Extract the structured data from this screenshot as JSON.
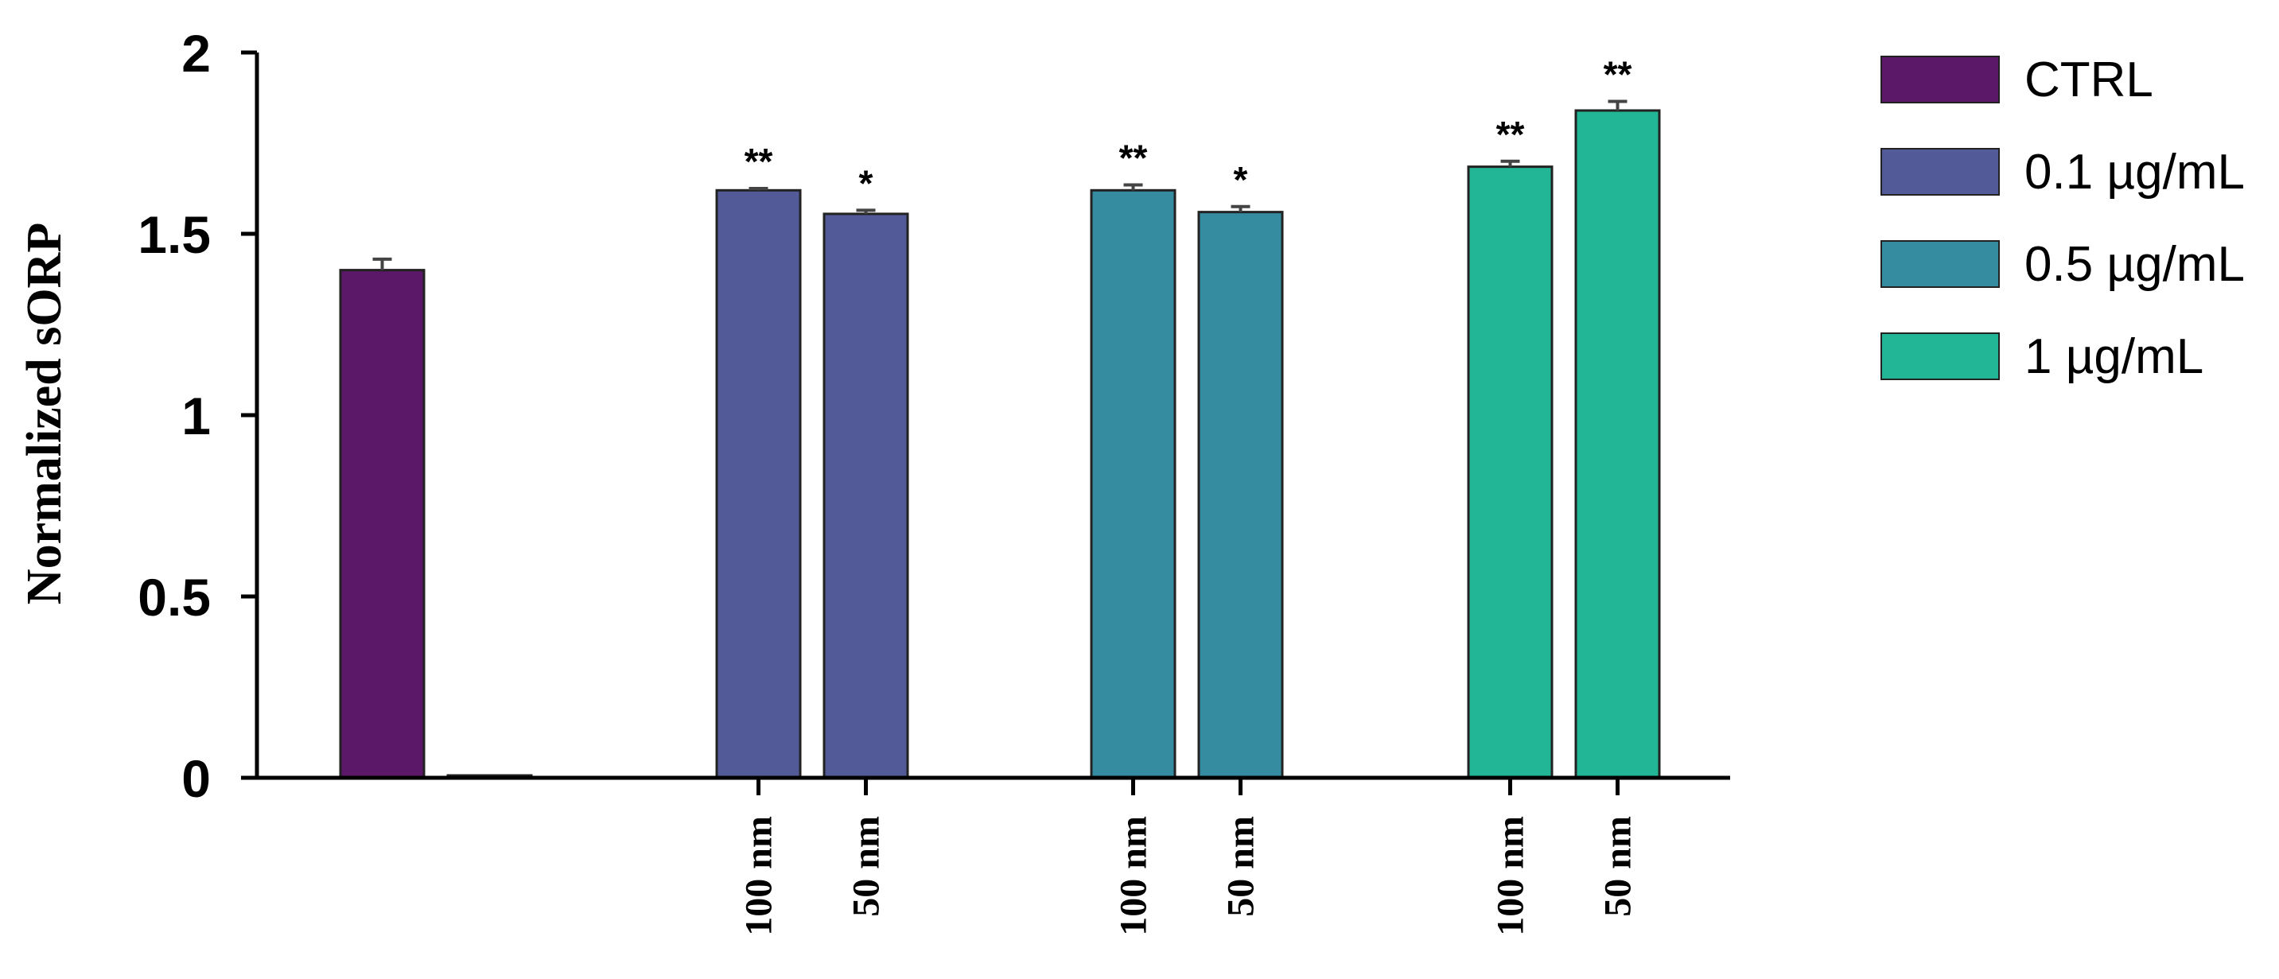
{
  "chart_data": {
    "type": "bar",
    "title": "",
    "xlabel": "",
    "ylabel": "Normalized sORP",
    "ylim": [
      0,
      2
    ],
    "yticks": [
      "0",
      "0.5",
      "1",
      "1.5",
      "2"
    ],
    "grid": false,
    "legend_position": "right",
    "series": [
      {
        "name": "CTRL",
        "color": "#5b1768",
        "bars": [
          {
            "x_label": "",
            "value": 1.4,
            "error": 0.03,
            "significance": ""
          },
          {
            "x_label": "",
            "value": 0.0,
            "error": 0,
            "significance": ""
          }
        ]
      },
      {
        "name": "0.1 µg/mL",
        "color": "#535a98",
        "bars": [
          {
            "x_label": "100 nm",
            "value": 1.62,
            "error": 0.005,
            "significance": "**"
          },
          {
            "x_label": "50 nm",
            "value": 1.555,
            "error": 0.01,
            "significance": "*"
          }
        ]
      },
      {
        "name": "0.5 µg/mL",
        "color": "#358ba0",
        "bars": [
          {
            "x_label": "100 nm",
            "value": 1.62,
            "error": 0.015,
            "significance": "**"
          },
          {
            "x_label": "50 nm",
            "value": 1.56,
            "error": 0.015,
            "significance": "*"
          }
        ]
      },
      {
        "name": "1 µg/mL",
        "color": "#23b696",
        "bars": [
          {
            "x_label": "100 nm",
            "value": 1.685,
            "error": 0.015,
            "significance": "**"
          },
          {
            "x_label": "50 nm",
            "value": 1.84,
            "error": 0.025,
            "significance": "**"
          }
        ]
      }
    ]
  }
}
